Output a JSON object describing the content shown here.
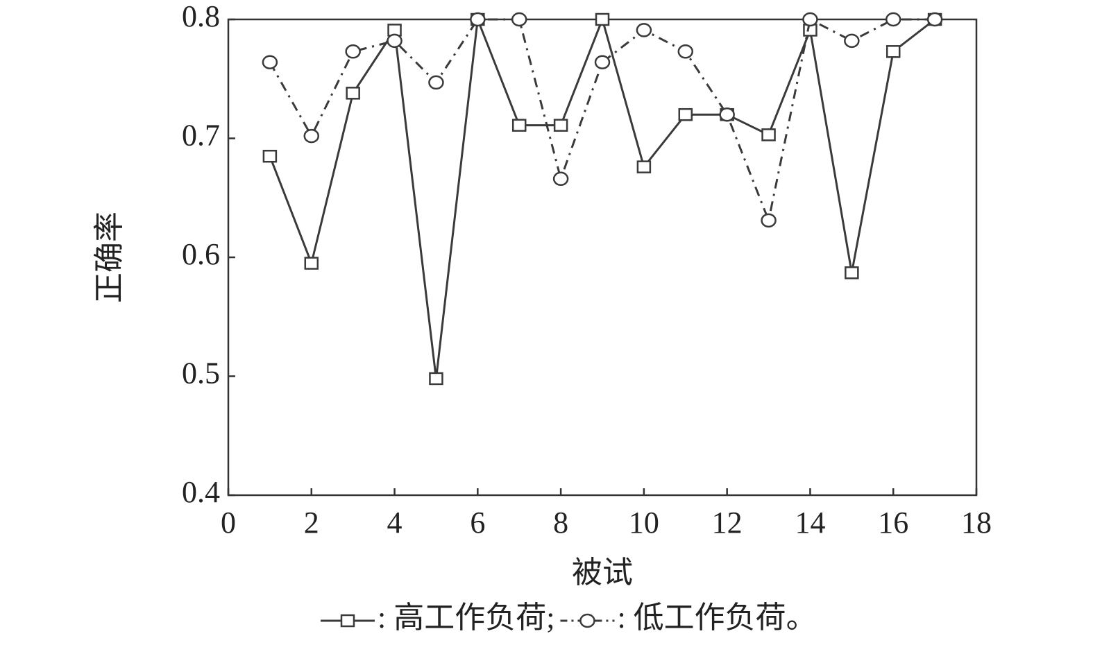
{
  "chart_data": {
    "type": "line",
    "x_label": "被试",
    "y_label": "正确率",
    "x": [
      1,
      2,
      3,
      4,
      5,
      6,
      7,
      8,
      9,
      10,
      11,
      12,
      13,
      14,
      15,
      16,
      17
    ],
    "series": [
      {
        "name": ": 高工作负荷;",
        "color": "#3a3a3a",
        "marker": "square",
        "dash": "solid",
        "values": [
          0.685,
          0.595,
          0.738,
          0.791,
          0.498,
          0.8,
          0.711,
          0.711,
          0.8,
          0.676,
          0.72,
          0.72,
          0.703,
          0.791,
          0.587,
          0.773,
          0.8
        ]
      },
      {
        "name": ": 低工作负荷。",
        "color": "#3a3a3a",
        "marker": "circle",
        "dash": "dashdot",
        "values": [
          0.764,
          0.702,
          0.773,
          0.782,
          0.747,
          0.8,
          0.8,
          0.666,
          0.764,
          0.791,
          0.773,
          0.72,
          0.631,
          0.8,
          0.782,
          0.8,
          0.8
        ]
      }
    ],
    "xlim": [
      0,
      18
    ],
    "xticks": [
      0,
      2,
      4,
      6,
      8,
      10,
      12,
      14,
      16,
      18
    ],
    "ylim": [
      0.4,
      0.8
    ],
    "yticks": [
      0.4,
      0.5,
      0.6,
      0.7,
      0.8
    ],
    "grid": false,
    "legend": "bottom"
  }
}
